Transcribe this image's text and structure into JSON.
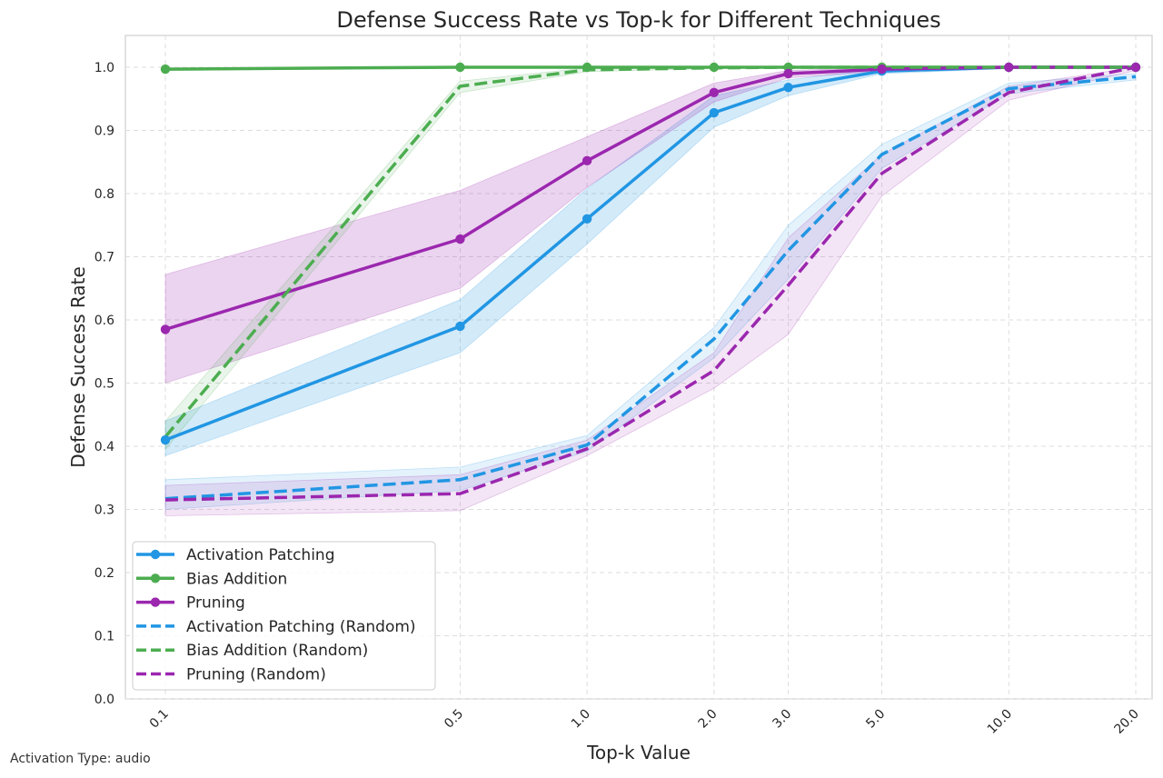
{
  "chart_data": {
    "type": "line",
    "title": "Defense Success Rate vs Top-k for Different Techniques",
    "xlabel": "Top-k Value",
    "ylabel": "Defense Success Rate",
    "x": [
      0.1,
      0.5,
      1.0,
      2.0,
      3.0,
      5.0,
      10.0,
      20.0
    ],
    "x_tick_labels": [
      "0.1",
      "0.5",
      "1.0",
      "2.0",
      "3.0",
      "5.0",
      "10.0",
      "20.0"
    ],
    "x_scale": "log",
    "ylim": [
      0,
      1.05
    ],
    "y_ticks": [
      0.0,
      0.1,
      0.2,
      0.3,
      0.4,
      0.5,
      0.6,
      0.7,
      0.8,
      0.9,
      1.0
    ],
    "y_tick_labels": [
      "0.0",
      "0.1",
      "0.2",
      "0.3",
      "0.4",
      "0.5",
      "0.6",
      "0.7",
      "0.8",
      "0.9",
      "1.0"
    ],
    "grid": true,
    "legend_position": "lower-left",
    "series": [
      {
        "name": "Activation Patching",
        "color": "#2196e3",
        "style": "solid",
        "markers": true,
        "values": [
          0.41,
          0.59,
          0.76,
          0.928,
          0.968,
          0.994,
          1.0,
          1.0
        ],
        "lower": [
          0.385,
          0.548,
          0.72,
          0.905,
          0.955,
          0.99,
          0.998,
          0.998
        ],
        "upper": [
          0.44,
          0.632,
          0.808,
          0.955,
          0.98,
          0.998,
          1.0,
          1.0
        ]
      },
      {
        "name": "Bias Addition",
        "color": "#4cad50",
        "style": "solid",
        "markers": true,
        "values": [
          0.997,
          1.0,
          1.0,
          1.0,
          1.0,
          1.0,
          1.0,
          1.0
        ],
        "lower": [
          0.995,
          0.999,
          0.999,
          0.999,
          0.999,
          0.999,
          0.999,
          0.999
        ],
        "upper": [
          0.999,
          1.0,
          1.0,
          1.0,
          1.0,
          1.0,
          1.0,
          1.0
        ]
      },
      {
        "name": "Pruning",
        "color": "#9b27af",
        "style": "solid",
        "markers": true,
        "values": [
          0.585,
          0.728,
          0.852,
          0.96,
          0.99,
          0.997,
          1.0,
          1.0
        ],
        "lower": [
          0.5,
          0.65,
          0.81,
          0.945,
          0.983,
          0.994,
          0.999,
          0.999
        ],
        "upper": [
          0.672,
          0.805,
          0.89,
          0.975,
          0.995,
          0.999,
          1.0,
          1.0
        ]
      },
      {
        "name": "Activation Patching (Random)",
        "color": "#2196e3",
        "style": "dashed",
        "markers": false,
        "values": [
          0.317,
          0.347,
          0.402,
          0.57,
          0.71,
          0.862,
          0.966,
          0.985
        ],
        "lower": [
          0.3,
          0.33,
          0.392,
          0.54,
          0.665,
          0.84,
          0.958,
          0.98
        ],
        "upper": [
          0.347,
          0.367,
          0.417,
          0.588,
          0.75,
          0.878,
          0.975,
          0.99
        ]
      },
      {
        "name": "Bias Addition (Random)",
        "color": "#4cad50",
        "style": "dashed",
        "markers": false,
        "values": [
          0.415,
          0.97,
          0.996,
          0.999,
          1.0,
          1.0,
          1.0,
          1.0
        ],
        "lower": [
          0.395,
          0.96,
          0.993,
          0.998,
          0.999,
          0.999,
          0.999,
          0.999
        ],
        "upper": [
          0.44,
          0.978,
          0.999,
          1.0,
          1.0,
          1.0,
          1.0,
          1.0
        ]
      },
      {
        "name": "Pruning (Random)",
        "color": "#9b27af",
        "style": "dashed",
        "markers": false,
        "values": [
          0.315,
          0.325,
          0.396,
          0.52,
          0.655,
          0.832,
          0.96,
          1.0
        ],
        "lower": [
          0.29,
          0.298,
          0.385,
          0.492,
          0.577,
          0.796,
          0.948,
          0.995
        ],
        "upper": [
          0.338,
          0.355,
          0.41,
          0.548,
          0.73,
          0.862,
          0.97,
          1.0
        ]
      }
    ]
  },
  "footnote": "Activation Type: audio"
}
